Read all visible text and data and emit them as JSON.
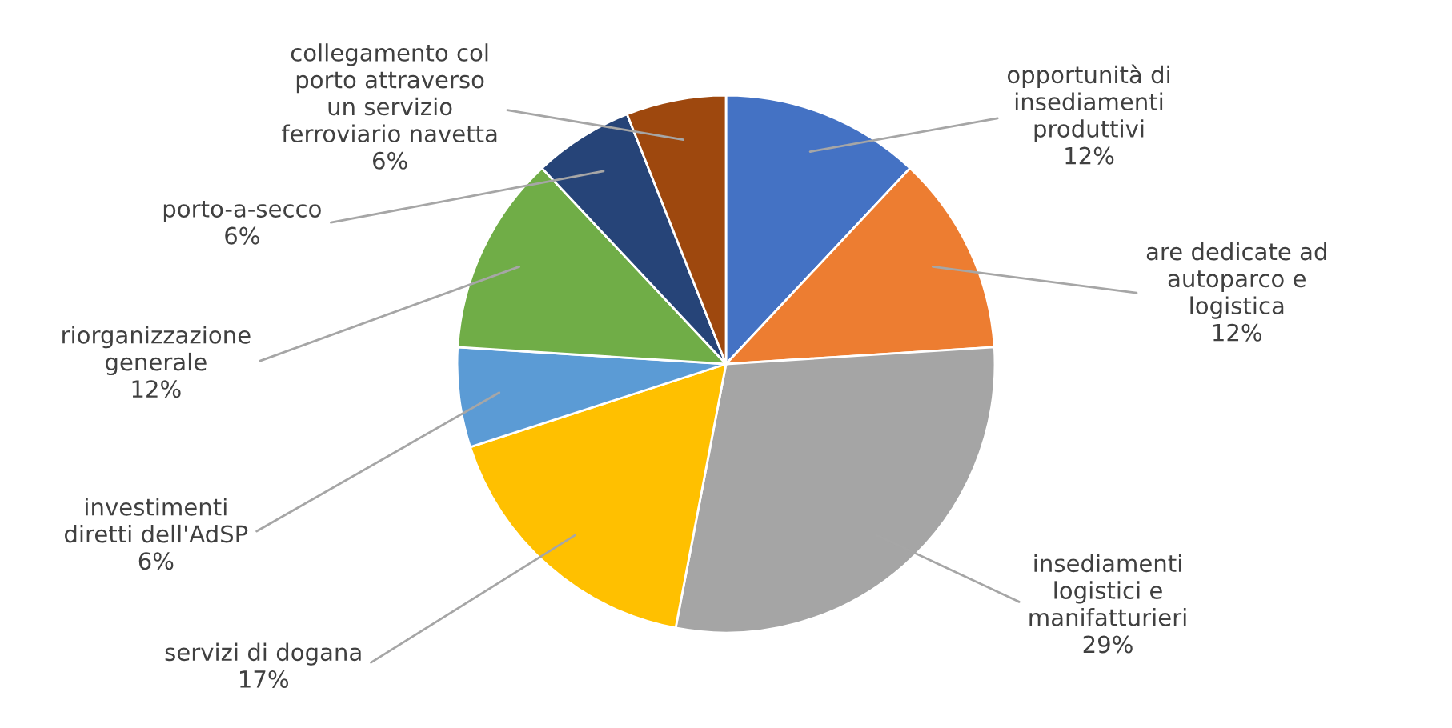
{
  "chart_data": {
    "type": "pie",
    "categories": [
      "opportunità di\ninsediamenti\nproduttivi",
      "are dedicate ad\nautoparco e\nlogistica",
      "insediamenti\nlogistici e\nmanifatturieri",
      "servizi di dogana",
      "investimenti\ndiretti dell'AdSP",
      "riorganizzazione\ngenerale",
      "porto-a-secco",
      "collegamento col\nporto attraverso\nun servizio\nferroviario navetta"
    ],
    "values": [
      12,
      12,
      29,
      17,
      6,
      12,
      6,
      6
    ],
    "colors": [
      "#4472c4",
      "#ed7d31",
      "#a5a5a5",
      "#ffc000",
      "#5b9bd5",
      "#70ad47",
      "#264478",
      "#9e480e"
    ],
    "value_labels": [
      "12%",
      "12%",
      "29%",
      "17%",
      "6%",
      "12%",
      "6%",
      "6%"
    ]
  }
}
